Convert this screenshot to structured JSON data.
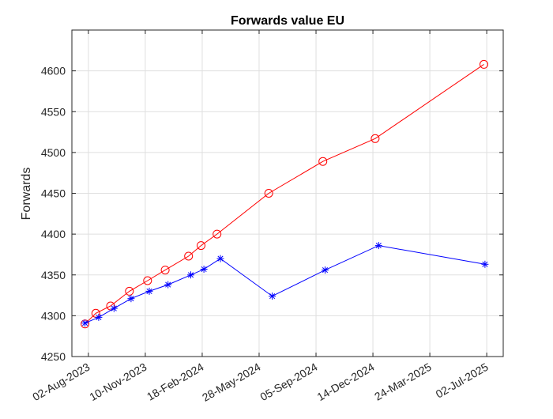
{
  "chart_data": {
    "type": "line",
    "title": "Forwards value EU",
    "xlabel": "",
    "ylabel": "Forwards",
    "x_ticks": [
      "02-Aug-2023",
      "10-Nov-2023",
      "18-Feb-2024",
      "28-May-2024",
      "05-Sep-2024",
      "14-Dec-2024",
      "24-Mar-2025",
      "02-Jul-2025"
    ],
    "y_ticks": [
      4250,
      4300,
      4350,
      4400,
      4450,
      4500,
      4550,
      4600
    ],
    "xlim": [
      "2023-07-04",
      "2025-07-31"
    ],
    "ylim": [
      4250,
      4650
    ],
    "grid": true,
    "legend": "none",
    "series": [
      {
        "color": "#ff0000",
        "marker": "circle",
        "points": [
          [
            "2023-07-27",
            4290
          ],
          [
            "2023-08-15",
            4303
          ],
          [
            "2023-09-10",
            4312
          ],
          [
            "2023-10-13",
            4330
          ],
          [
            "2023-11-14",
            4343
          ],
          [
            "2023-12-15",
            4356
          ],
          [
            "2024-01-25",
            4373
          ],
          [
            "2024-02-16",
            4386
          ],
          [
            "2024-03-15",
            4400
          ],
          [
            "2024-06-14",
            4450
          ],
          [
            "2024-09-17",
            4489
          ],
          [
            "2024-12-18",
            4517
          ],
          [
            "2025-06-27",
            4608
          ]
        ]
      },
      {
        "color": "#0000ff",
        "marker": "asterisk",
        "points": [
          [
            "2023-07-27",
            4291
          ],
          [
            "2023-08-20",
            4298
          ],
          [
            "2023-09-16",
            4309
          ],
          [
            "2023-10-16",
            4321
          ],
          [
            "2023-11-17",
            4330
          ],
          [
            "2023-12-20",
            4338
          ],
          [
            "2024-01-29",
            4350
          ],
          [
            "2024-02-21",
            4357
          ],
          [
            "2024-03-21",
            4370
          ],
          [
            "2024-06-20",
            4324
          ],
          [
            "2024-09-21",
            4356
          ],
          [
            "2024-12-24",
            4386
          ],
          [
            "2025-06-29",
            4363
          ]
        ]
      }
    ]
  }
}
